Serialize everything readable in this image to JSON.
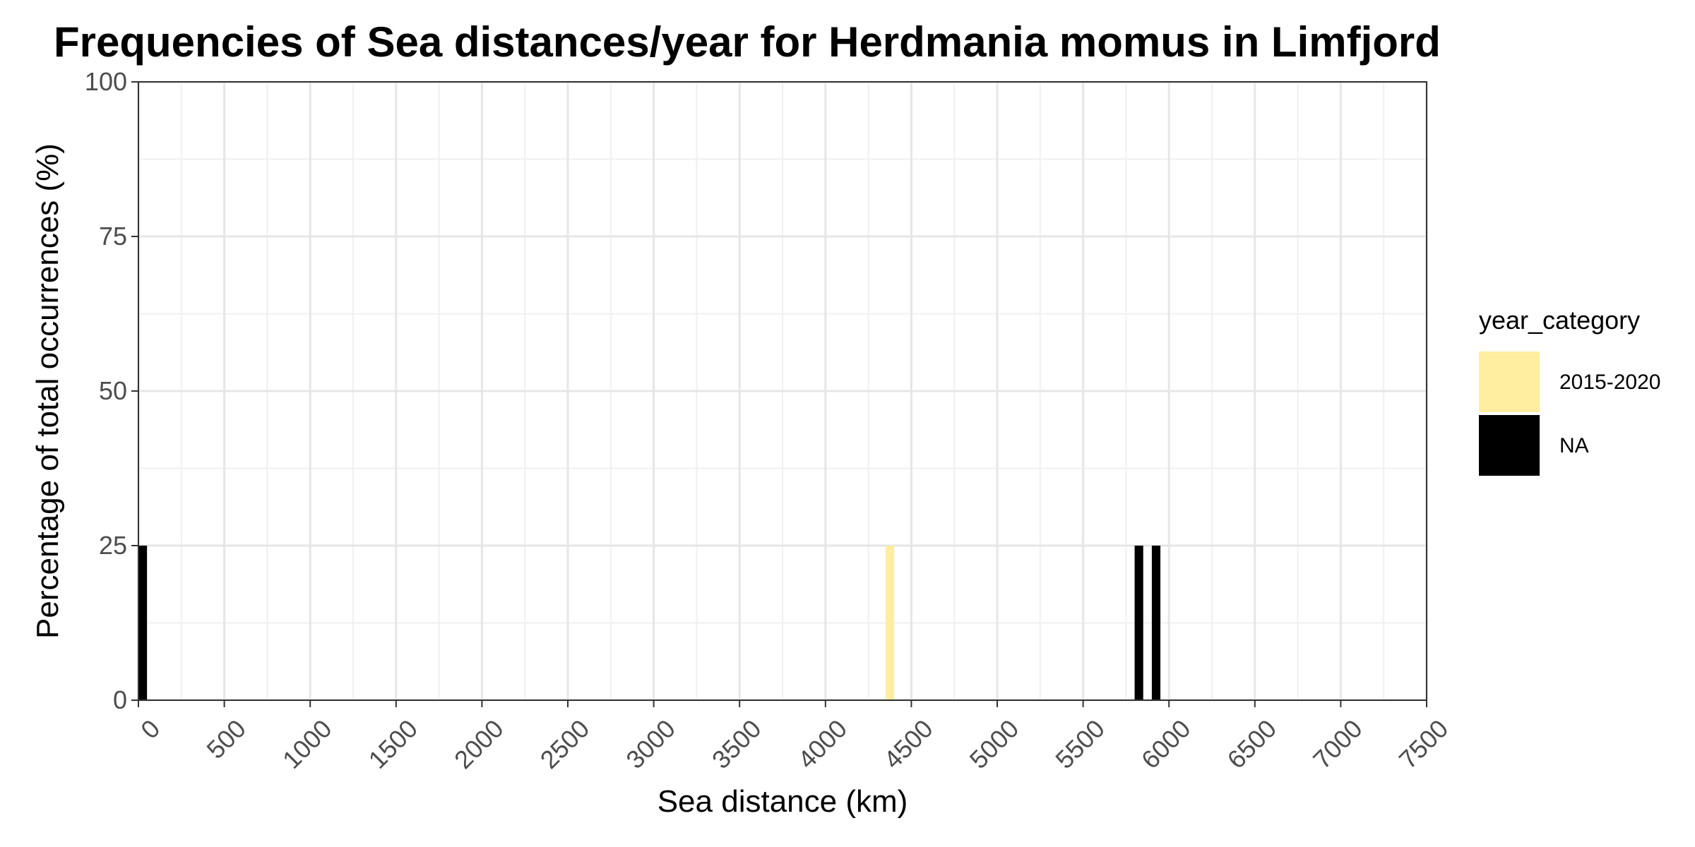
{
  "chart_data": {
    "type": "bar",
    "title": "Frequencies of Sea distances/year for Herdmania momus in Limfjord",
    "xlabel": "Sea distance (km)",
    "ylabel": "Percentage of total occurrences (%)",
    "xlim": [
      0,
      7500
    ],
    "ylim": [
      0,
      100
    ],
    "x_ticks": [
      "0",
      "500",
      "1000",
      "1500",
      "2000",
      "2500",
      "3000",
      "3500",
      "4000",
      "4500",
      "5000",
      "5500",
      "6000",
      "6500",
      "7000",
      "7500"
    ],
    "y_ticks": [
      "0",
      "25",
      "50",
      "75",
      "100"
    ],
    "bin_width": 50,
    "grid": true,
    "legend": {
      "title": "year_category",
      "position": "right",
      "entries": [
        {
          "label": "2015-2020",
          "color": "#FFEDA0"
        },
        {
          "label": "NA",
          "color": "#000000"
        }
      ]
    },
    "series": [
      {
        "name": "2015-2020",
        "color": "#FFEDA0",
        "points": [
          {
            "x": 4375,
            "y": 25
          }
        ]
      },
      {
        "name": "NA",
        "color": "#000000",
        "points": [
          {
            "x": 25,
            "y": 25
          },
          {
            "x": 5825,
            "y": 25
          },
          {
            "x": 5925,
            "y": 25
          }
        ]
      }
    ]
  }
}
